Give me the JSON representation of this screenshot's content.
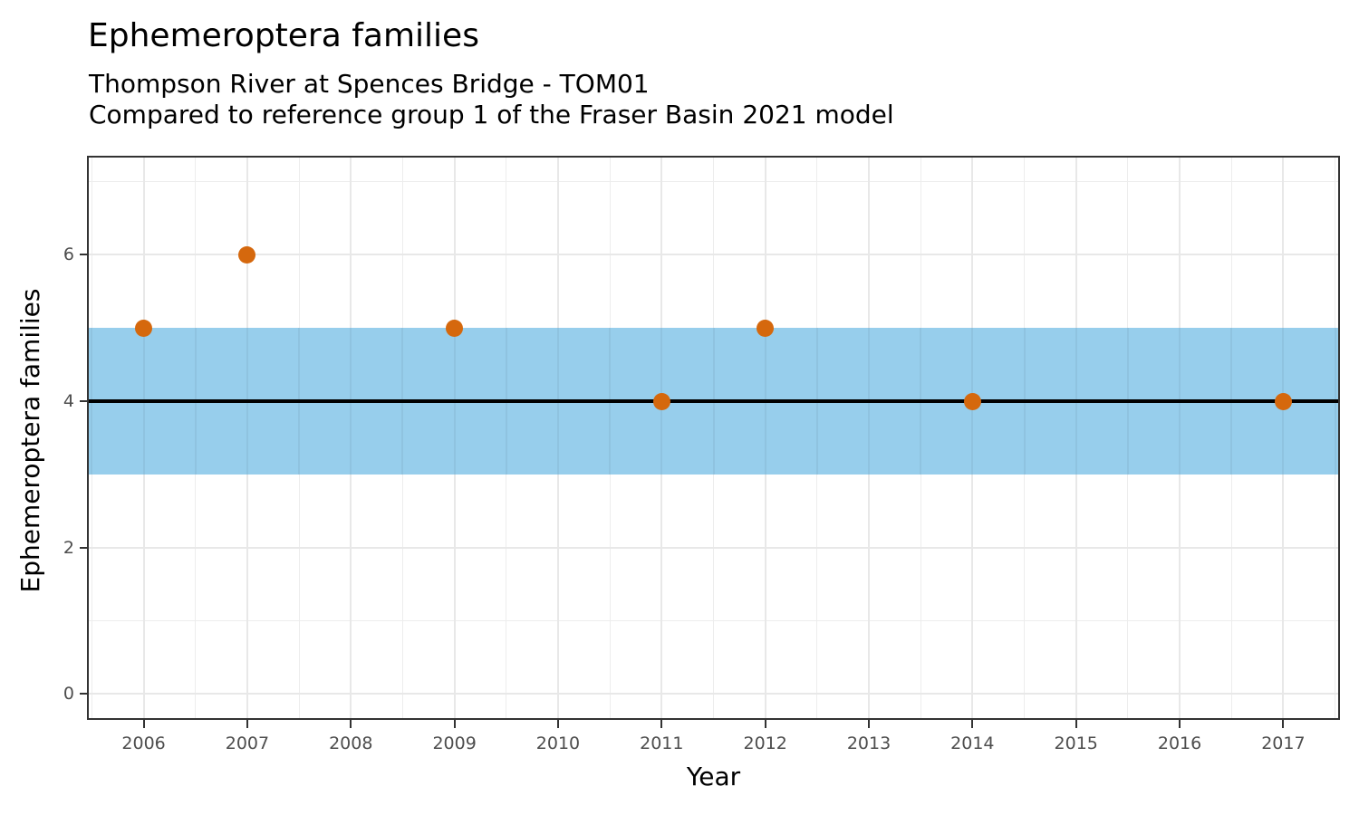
{
  "chart_data": {
    "type": "scatter",
    "title": "Ephemeroptera families",
    "subtitle_line1": "Thompson River at Spences Bridge - TOM01",
    "subtitle_line2": "Compared to reference group 1 of the Fraser Basin 2021 model",
    "xlabel": "Year",
    "ylabel": "Ephemeroptera families",
    "points": [
      {
        "x": 2006,
        "y": 5
      },
      {
        "x": 2007,
        "y": 6
      },
      {
        "x": 2009,
        "y": 5
      },
      {
        "x": 2011,
        "y": 4
      },
      {
        "x": 2012,
        "y": 5
      },
      {
        "x": 2014,
        "y": 4
      },
      {
        "x": 2017,
        "y": 4
      }
    ],
    "reference_band": {
      "ymin": 3,
      "ymax": 5
    },
    "reference_line_y": 4,
    "xlim": [
      2005.47,
      2017.53
    ],
    "ylim": [
      -0.33,
      7.33
    ],
    "x_major_ticks": [
      2006,
      2007,
      2008,
      2009,
      2010,
      2011,
      2012,
      2013,
      2014,
      2015,
      2016,
      2017
    ],
    "y_major_ticks": [
      0,
      2,
      4,
      6
    ],
    "x_minor_ticks": [
      2005.5,
      2006.5,
      2007.5,
      2008.5,
      2009.5,
      2010.5,
      2011.5,
      2012.5,
      2013.5,
      2014.5,
      2015.5,
      2016.5,
      2017.5
    ],
    "y_minor_ticks": [
      1,
      3,
      5,
      7
    ],
    "grid": "major and minor, light gray on white panel",
    "legend": "none",
    "colors": {
      "point": "#D5680D",
      "reference_band": "#97CEEC",
      "reference_line": "#000000",
      "grid_major": "#E8E8E8",
      "grid_minor": "#EDEDED",
      "panel_border": "#333333",
      "tick_label": "#4D4D4D",
      "text": "#000000",
      "background": "#FFFFFF"
    }
  }
}
